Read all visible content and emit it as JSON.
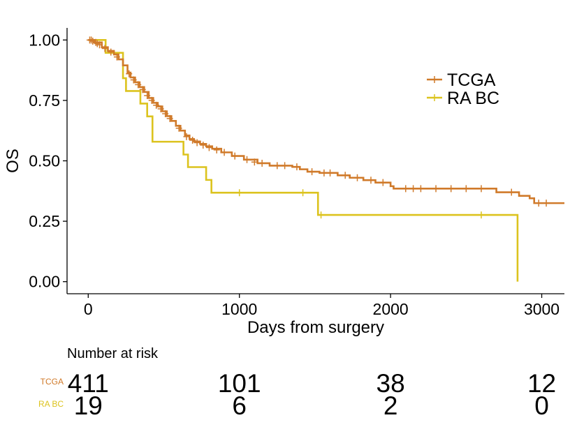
{
  "chart_data": {
    "type": "line",
    "subtype": "kaplan-meier-step",
    "title": "",
    "xlabel": "Days from surgery",
    "ylabel": "OS",
    "xlim": [
      -140,
      3150
    ],
    "ylim": [
      -0.05,
      1.05
    ],
    "x_ticks": [
      0,
      1000,
      2000,
      3000
    ],
    "x_tick_labels": [
      "0",
      "1000",
      "2000",
      "3000"
    ],
    "y_ticks": [
      0,
      0.25,
      0.5,
      0.75,
      1.0
    ],
    "y_tick_labels": [
      "0.00",
      "0.25",
      "0.50",
      "0.75",
      "1.00"
    ],
    "grid": false,
    "legend_position": "top-right",
    "series": [
      {
        "name": "TCGA",
        "color": "#D07A2A",
        "steps": [
          [
            0,
            1.0
          ],
          [
            40,
            0.99
          ],
          [
            90,
            0.97
          ],
          [
            130,
            0.955
          ],
          [
            170,
            0.94
          ],
          [
            200,
            0.92
          ],
          [
            230,
            0.895
          ],
          [
            260,
            0.865
          ],
          [
            280,
            0.845
          ],
          [
            310,
            0.825
          ],
          [
            340,
            0.805
          ],
          [
            370,
            0.785
          ],
          [
            400,
            0.76
          ],
          [
            430,
            0.74
          ],
          [
            460,
            0.725
          ],
          [
            490,
            0.705
          ],
          [
            520,
            0.685
          ],
          [
            550,
            0.665
          ],
          [
            580,
            0.645
          ],
          [
            610,
            0.625
          ],
          [
            640,
            0.605
          ],
          [
            670,
            0.59
          ],
          [
            700,
            0.58
          ],
          [
            740,
            0.57
          ],
          [
            780,
            0.56
          ],
          [
            820,
            0.55
          ],
          [
            880,
            0.535
          ],
          [
            950,
            0.52
          ],
          [
            1030,
            0.505
          ],
          [
            1120,
            0.49
          ],
          [
            1200,
            0.48
          ],
          [
            1350,
            0.475
          ],
          [
            1400,
            0.465
          ],
          [
            1450,
            0.455
          ],
          [
            1530,
            0.45
          ],
          [
            1650,
            0.44
          ],
          [
            1730,
            0.43
          ],
          [
            1820,
            0.42
          ],
          [
            1900,
            0.41
          ],
          [
            2000,
            0.395
          ],
          [
            2020,
            0.385
          ],
          [
            2700,
            0.37
          ],
          [
            2850,
            0.355
          ],
          [
            2920,
            0.345
          ],
          [
            2950,
            0.325
          ],
          [
            3150,
            0.325
          ]
        ],
        "censor_marks": [
          [
            10,
            1.0
          ],
          [
            20,
            1.0
          ],
          [
            30,
            0.995
          ],
          [
            50,
            0.99
          ],
          [
            60,
            0.985
          ],
          [
            75,
            0.98
          ],
          [
            110,
            0.965
          ],
          [
            150,
            0.95
          ],
          [
            190,
            0.93
          ],
          [
            270,
            0.86
          ],
          [
            300,
            0.835
          ],
          [
            330,
            0.815
          ],
          [
            360,
            0.795
          ],
          [
            390,
            0.77
          ],
          [
            420,
            0.75
          ],
          [
            450,
            0.73
          ],
          [
            480,
            0.715
          ],
          [
            510,
            0.695
          ],
          [
            540,
            0.675
          ],
          [
            600,
            0.635
          ],
          [
            650,
            0.6
          ],
          [
            690,
            0.585
          ],
          [
            720,
            0.575
          ],
          [
            760,
            0.565
          ],
          [
            800,
            0.555
          ],
          [
            850,
            0.545
          ],
          [
            900,
            0.535
          ],
          [
            970,
            0.52
          ],
          [
            1050,
            0.505
          ],
          [
            1100,
            0.495
          ],
          [
            1150,
            0.49
          ],
          [
            1250,
            0.48
          ],
          [
            1300,
            0.48
          ],
          [
            1380,
            0.475
          ],
          [
            1480,
            0.455
          ],
          [
            1560,
            0.45
          ],
          [
            1600,
            0.45
          ],
          [
            1700,
            0.44
          ],
          [
            1780,
            0.43
          ],
          [
            1870,
            0.42
          ],
          [
            1950,
            0.41
          ],
          [
            2100,
            0.385
          ],
          [
            2150,
            0.385
          ],
          [
            2200,
            0.385
          ],
          [
            2300,
            0.385
          ],
          [
            2400,
            0.385
          ],
          [
            2500,
            0.385
          ],
          [
            2600,
            0.385
          ],
          [
            2800,
            0.37
          ],
          [
            2980,
            0.325
          ],
          [
            3030,
            0.325
          ]
        ]
      },
      {
        "name": "RA BC",
        "color": "#DCC31E",
        "steps": [
          [
            0,
            1.0
          ],
          [
            115,
            0.947
          ],
          [
            230,
            0.842
          ],
          [
            250,
            0.789
          ],
          [
            345,
            0.737
          ],
          [
            390,
            0.684
          ],
          [
            425,
            0.579
          ],
          [
            630,
            0.526
          ],
          [
            660,
            0.474
          ],
          [
            780,
            0.421
          ],
          [
            815,
            0.368
          ],
          [
            1520,
            0.276
          ],
          [
            2840,
            0.276
          ],
          [
            2840,
            0.0
          ]
        ],
        "censor_marks": [
          [
            1000,
            0.368
          ],
          [
            1420,
            0.368
          ],
          [
            1540,
            0.276
          ],
          [
            2600,
            0.276
          ]
        ]
      }
    ],
    "risk_table": {
      "title": "Number at risk",
      "times": [
        0,
        1000,
        2000,
        3000
      ],
      "rows": [
        {
          "label": "TCGA",
          "color": "#D07A2A",
          "values": [
            "411",
            "101",
            "38",
            "12"
          ]
        },
        {
          "label": "RA BC",
          "color": "#DCC31E",
          "values": [
            "19",
            "6",
            "2",
            "0"
          ]
        }
      ]
    }
  }
}
